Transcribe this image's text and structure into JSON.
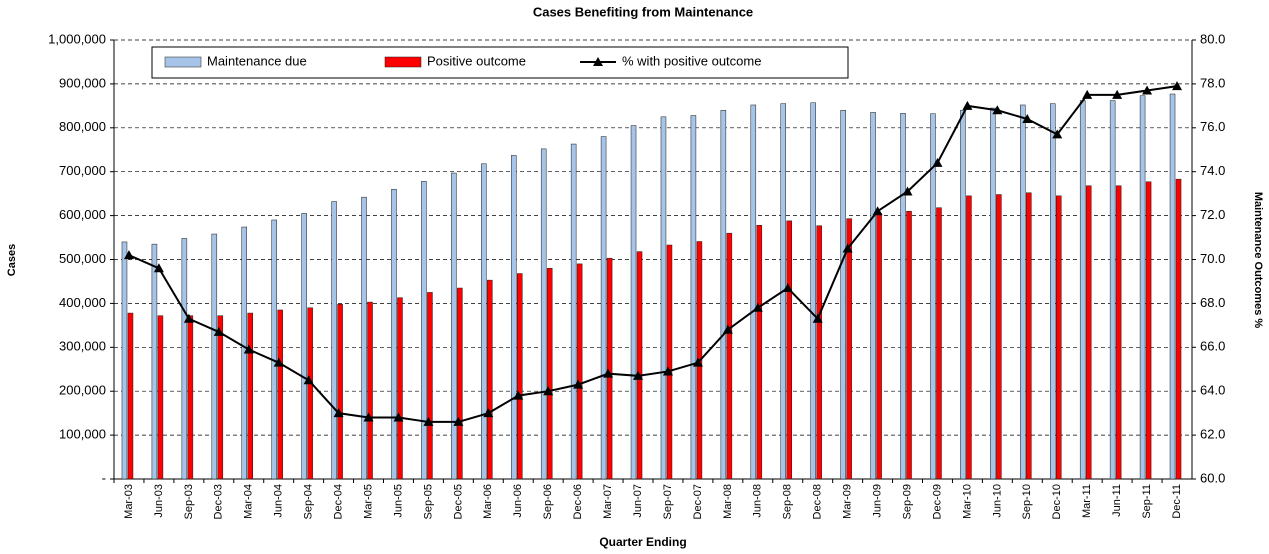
{
  "chart_data": {
    "type": "bar",
    "title": "Cases Benefiting from Maintenance",
    "x_label": "Quarter Ending",
    "y_label": "Cases",
    "y2_label": "Maintenance Outcomes %",
    "categories": [
      "Mar-03",
      "Jun-03",
      "Sep-03",
      "Dec-03",
      "Mar-04",
      "Jun-04",
      "Sep-04",
      "Dec-04",
      "Mar-05",
      "Jun-05",
      "Sep-05",
      "Dec-05",
      "Mar-06",
      "Jun-06",
      "Sep-06",
      "Dec-06",
      "Mar-07",
      "Jun-07",
      "Sep-07",
      "Dec-07",
      "Mar-08",
      "Jun-08",
      "Sep-08",
      "Dec-08",
      "Mar-09",
      "Jun-09",
      "Sep-09",
      "Dec-09",
      "Mar-10",
      "Jun-10",
      "Sep-10",
      "Dec-10",
      "Mar-11",
      "Jun-11",
      "Sep-11",
      "Dec-11"
    ],
    "series": [
      {
        "name": "Maintenance due",
        "type": "bar",
        "color": "#a6c4e8",
        "values": [
          540000,
          535000,
          548000,
          558000,
          574000,
          590000,
          605000,
          632000,
          642000,
          660000,
          678000,
          697000,
          718000,
          737000,
          752000,
          763000,
          780000,
          805000,
          825000,
          828000,
          840000,
          852000,
          855000,
          857000,
          840000,
          835000,
          833000,
          832000,
          840000,
          845000,
          852000,
          855000,
          862000,
          862000,
          873000,
          877000
        ]
      },
      {
        "name": "Positive outcome",
        "type": "bar",
        "color": "#ff0000",
        "values": [
          378000,
          372000,
          372000,
          372000,
          378000,
          385000,
          390000,
          398000,
          403000,
          413000,
          425000,
          435000,
          453000,
          468000,
          480000,
          490000,
          503000,
          518000,
          533000,
          541000,
          560000,
          578000,
          588000,
          577000,
          593000,
          605000,
          610000,
          618000,
          645000,
          648000,
          652000,
          645000,
          668000,
          668000,
          677000,
          683000
        ]
      },
      {
        "name": "% with positive outcome",
        "type": "line",
        "axis": "y2",
        "color": "#000000",
        "values": [
          70.2,
          69.6,
          67.3,
          66.7,
          65.9,
          65.3,
          64.5,
          63.0,
          62.8,
          62.8,
          62.6,
          62.6,
          63.0,
          63.8,
          64.0,
          64.3,
          64.8,
          64.7,
          64.9,
          65.3,
          66.8,
          67.8,
          68.7,
          67.3,
          70.5,
          72.2,
          73.1,
          74.4,
          77.0,
          76.8,
          76.4,
          75.7,
          77.5,
          77.5,
          77.7,
          77.9
        ]
      }
    ],
    "ylim": [
      0,
      1000000
    ],
    "yticks": [
      {
        "value": 0,
        "label": "-"
      },
      {
        "value": 100000,
        "label": "100,000"
      },
      {
        "value": 200000,
        "label": "200,000"
      },
      {
        "value": 300000,
        "label": "300,000"
      },
      {
        "value": 400000,
        "label": "400,000"
      },
      {
        "value": 500000,
        "label": "500,000"
      },
      {
        "value": 600000,
        "label": "600,000"
      },
      {
        "value": 700000,
        "label": "700,000"
      },
      {
        "value": 800000,
        "label": "800,000"
      },
      {
        "value": 900000,
        "label": "900,000"
      },
      {
        "value": 1000000,
        "label": "1,000,000"
      }
    ],
    "y2lim": [
      60,
      80
    ],
    "y2ticks": [
      {
        "value": 60,
        "label": "60.0"
      },
      {
        "value": 62,
        "label": "62.0"
      },
      {
        "value": 64,
        "label": "64.0"
      },
      {
        "value": 66,
        "label": "66.0"
      },
      {
        "value": 68,
        "label": "68.0"
      },
      {
        "value": 70,
        "label": "70.0"
      },
      {
        "value": 72,
        "label": "72.0"
      },
      {
        "value": 74,
        "label": "74.0"
      },
      {
        "value": 76,
        "label": "76.0"
      },
      {
        "value": 78,
        "label": "78.0"
      },
      {
        "value": 80,
        "label": "80.0"
      }
    ],
    "grid": true,
    "legend": "top"
  }
}
